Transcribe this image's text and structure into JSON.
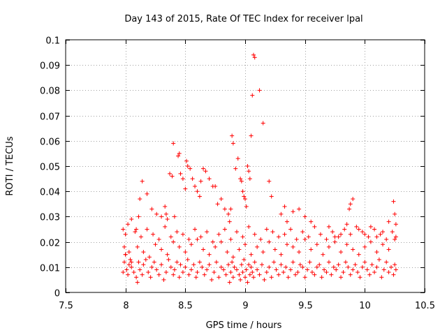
{
  "chart_data": {
    "type": "scatter",
    "title": "Day 143 of 2015, Rate Of TEC Index for receiver lpal",
    "xlabel": "GPS time / hours",
    "ylabel": "ROTI / TECUs",
    "xlim": [
      7.5,
      10.5
    ],
    "ylim": [
      0,
      0.1
    ],
    "xticks": [
      7.5,
      8,
      8.5,
      9,
      9.5,
      10,
      10.5
    ],
    "xtick_labels": [
      "7.5",
      "8",
      "8.5",
      "9",
      "9.5",
      "10",
      "10.5"
    ],
    "yticks": [
      0,
      0.01,
      0.02,
      0.03,
      0.04,
      0.05,
      0.06,
      0.07,
      0.08,
      0.09,
      0.1
    ],
    "ytick_labels": [
      "0",
      "0.01",
      "0.02",
      "0.03",
      "0.04",
      "0.05",
      "0.06",
      "0.07",
      "0.08",
      "0.09",
      "0.1"
    ],
    "grid": true,
    "marker": "+",
    "color": "#ff0000",
    "series": [
      {
        "name": "ROTI",
        "x": [
          7.98,
          7.99,
          8.0,
          8.01,
          8.02,
          8.03,
          8.04,
          8.05,
          8.07,
          8.09,
          8.1,
          8.11,
          8.12,
          8.14,
          8.15,
          8.17,
          8.19,
          8.21,
          8.22,
          8.24,
          8.26,
          8.28,
          8.3,
          8.32,
          8.34,
          8.36,
          8.38,
          8.4,
          8.41,
          8.43,
          8.45,
          8.46,
          8.48,
          8.5,
          8.52,
          8.53,
          8.55,
          8.57,
          8.59,
          8.6,
          8.62,
          8.64,
          8.66,
          8.68,
          8.7,
          8.72,
          8.74,
          8.76,
          8.78,
          8.8,
          8.82,
          8.84,
          8.86,
          8.87,
          8.88,
          8.89,
          8.9,
          8.91,
          8.93,
          8.95,
          8.96,
          8.97,
          8.98,
          8.99,
          9.0,
          9.01,
          9.02,
          9.03,
          9.04,
          9.05,
          9.06,
          9.07,
          9.08,
          9.1,
          9.12,
          9.14,
          9.16,
          9.18,
          9.2,
          9.22,
          9.24,
          9.26,
          9.28,
          9.3,
          9.32,
          9.34,
          9.36,
          9.38,
          9.4,
          9.42,
          9.44,
          9.46,
          9.48,
          9.5,
          9.52,
          9.54,
          9.56,
          9.58,
          9.6,
          9.62,
          9.64,
          9.66,
          9.68,
          9.7,
          9.72,
          9.74,
          9.76,
          9.78,
          9.8,
          9.82,
          9.84,
          9.86,
          9.88,
          9.9,
          9.92,
          9.94,
          9.96,
          9.98,
          10.0,
          10.02,
          10.04,
          10.06,
          10.08,
          10.1,
          10.12,
          10.14,
          10.16,
          10.18,
          10.2,
          10.22,
          10.24,
          10.25,
          10.26,
          8.0,
          8.05,
          8.1,
          8.15,
          8.2,
          8.25,
          8.3,
          8.35,
          8.4,
          8.45,
          8.5,
          8.55,
          8.6,
          8.65,
          8.7,
          8.75,
          8.8,
          8.85,
          8.9,
          8.95,
          9.0,
          9.05,
          9.1,
          9.15,
          9.2,
          9.25,
          9.3,
          9.35,
          9.4,
          9.45,
          9.5,
          9.55,
          9.6,
          9.65,
          9.7,
          9.75,
          9.8,
          9.85,
          9.9,
          9.95,
          10.0,
          10.05,
          10.1,
          10.15,
          10.2,
          10.25,
          7.99,
          8.03,
          8.08,
          8.13,
          8.18,
          8.23,
          8.28,
          8.33,
          8.38,
          8.43,
          8.48,
          8.53,
          8.58,
          8.63,
          8.68,
          8.73,
          8.78,
          8.83,
          8.88,
          8.93,
          8.98,
          9.03,
          9.08,
          9.13,
          9.18,
          9.23,
          9.28,
          9.33,
          9.38,
          9.43,
          9.48,
          9.53,
          9.58,
          9.63,
          9.68,
          9.73,
          9.78,
          9.83,
          9.88,
          9.93,
          9.98,
          10.03,
          10.08,
          10.13,
          10.18,
          10.23,
          10.26,
          7.98,
          8.0,
          8.02,
          8.05,
          8.09,
          8.11,
          8.12,
          8.14,
          8.18,
          8.22,
          8.26,
          8.3,
          8.33,
          8.34,
          8.35,
          8.37,
          8.39,
          8.4,
          8.41,
          8.44,
          8.45,
          8.46,
          8.48,
          8.5,
          8.51,
          8.52,
          8.54,
          8.56,
          8.58,
          8.6,
          8.62,
          8.63,
          8.65,
          8.67,
          8.7,
          8.73,
          8.75,
          8.77,
          8.8,
          8.83,
          8.86,
          8.87,
          8.88,
          8.89,
          8.9,
          8.92,
          8.94,
          8.96,
          8.97,
          8.98,
          8.99,
          9.0,
          9.01,
          9.02,
          9.03,
          9.04,
          9.05,
          9.06,
          9.07,
          9.08,
          9.12,
          9.15,
          9.2,
          9.22,
          9.3,
          9.33,
          9.35,
          9.4,
          9.45,
          9.5,
          9.55,
          9.7,
          9.75,
          9.8,
          9.85,
          9.87,
          9.88,
          9.9,
          9.95,
          10.0,
          10.05,
          10.1,
          10.15,
          10.2,
          10.24,
          10.25,
          10.26
        ],
        "y": [
          0.008,
          0.012,
          0.015,
          0.009,
          0.007,
          0.011,
          0.013,
          0.01,
          0.008,
          0.006,
          0.004,
          0.012,
          0.009,
          0.007,
          0.011,
          0.013,
          0.008,
          0.006,
          0.01,
          0.012,
          0.009,
          0.007,
          0.011,
          0.005,
          0.008,
          0.013,
          0.01,
          0.007,
          0.009,
          0.012,
          0.006,
          0.011,
          0.008,
          0.01,
          0.013,
          0.007,
          0.009,
          0.011,
          0.006,
          0.008,
          0.012,
          0.01,
          0.007,
          0.009,
          0.011,
          0.005,
          0.008,
          0.012,
          0.006,
          0.01,
          0.009,
          0.007,
          0.011,
          0.004,
          0.008,
          0.012,
          0.006,
          0.01,
          0.009,
          0.007,
          0.005,
          0.011,
          0.008,
          0.013,
          0.006,
          0.009,
          0.004,
          0.011,
          0.007,
          0.01,
          0.008,
          0.006,
          0.012,
          0.009,
          0.007,
          0.011,
          0.005,
          0.008,
          0.01,
          0.006,
          0.012,
          0.009,
          0.007,
          0.011,
          0.008,
          0.01,
          0.006,
          0.009,
          0.012,
          0.007,
          0.008,
          0.011,
          0.01,
          0.006,
          0.009,
          0.012,
          0.008,
          0.007,
          0.01,
          0.011,
          0.006,
          0.009,
          0.008,
          0.012,
          0.007,
          0.01,
          0.009,
          0.011,
          0.006,
          0.008,
          0.012,
          0.01,
          0.007,
          0.009,
          0.011,
          0.008,
          0.006,
          0.01,
          0.012,
          0.009,
          0.007,
          0.011,
          0.008,
          0.01,
          0.013,
          0.006,
          0.009,
          0.012,
          0.008,
          0.01,
          0.007,
          0.011,
          0.009,
          0.015,
          0.012,
          0.018,
          0.016,
          0.014,
          0.019,
          0.017,
          0.015,
          0.02,
          0.018,
          0.016,
          0.019,
          0.021,
          0.017,
          0.015,
          0.018,
          0.02,
          0.016,
          0.014,
          0.017,
          0.019,
          0.015,
          0.018,
          0.016,
          0.02,
          0.017,
          0.015,
          0.019,
          0.018,
          0.016,
          0.021,
          0.017,
          0.019,
          0.015,
          0.018,
          0.02,
          0.016,
          0.019,
          0.017,
          0.015,
          0.018,
          0.02,
          0.016,
          0.019,
          0.017,
          0.021,
          0.018,
          0.016,
          0.024,
          0.022,
          0.025,
          0.023,
          0.021,
          0.026,
          0.022,
          0.024,
          0.023,
          0.021,
          0.025,
          0.022,
          0.024,
          0.02,
          0.023,
          0.025,
          0.021,
          0.024,
          0.022,
          0.026,
          0.023,
          0.021,
          0.025,
          0.024,
          0.022,
          0.023,
          0.025,
          0.021,
          0.024,
          0.022,
          0.026,
          0.023,
          0.021,
          0.024,
          0.022,
          0.025,
          0.023,
          0.026,
          0.024,
          0.022,
          0.025,
          0.023,
          0.021,
          0.024,
          0.027,
          0.025,
          0.023,
          0.027,
          0.029,
          0.025,
          0.03,
          0.037,
          0.044,
          0.039,
          0.033,
          0.031,
          0.03,
          0.034,
          0.031,
          0.029,
          0.047,
          0.046,
          0.059,
          0.03,
          0.054,
          0.055,
          0.047,
          0.045,
          0.041,
          0.052,
          0.05,
          0.049,
          0.045,
          0.042,
          0.04,
          0.038,
          0.044,
          0.049,
          0.048,
          0.045,
          0.042,
          0.042,
          0.035,
          0.037,
          0.033,
          0.031,
          0.028,
          0.033,
          0.062,
          0.059,
          0.049,
          0.053,
          0.045,
          0.044,
          0.04,
          0.038,
          0.037,
          0.034,
          0.05,
          0.048,
          0.045,
          0.062,
          0.078,
          0.094,
          0.093,
          0.08,
          0.067,
          0.044,
          0.038,
          0.031,
          0.034,
          0.028,
          0.032,
          0.033,
          0.03,
          0.028,
          0.026,
          0.022,
          0.023,
          0.027,
          0.033,
          0.035,
          0.037,
          0.025,
          0.023,
          0.026,
          0.022,
          0.024,
          0.028,
          0.036,
          0.031,
          0.022
        ]
      }
    ]
  }
}
